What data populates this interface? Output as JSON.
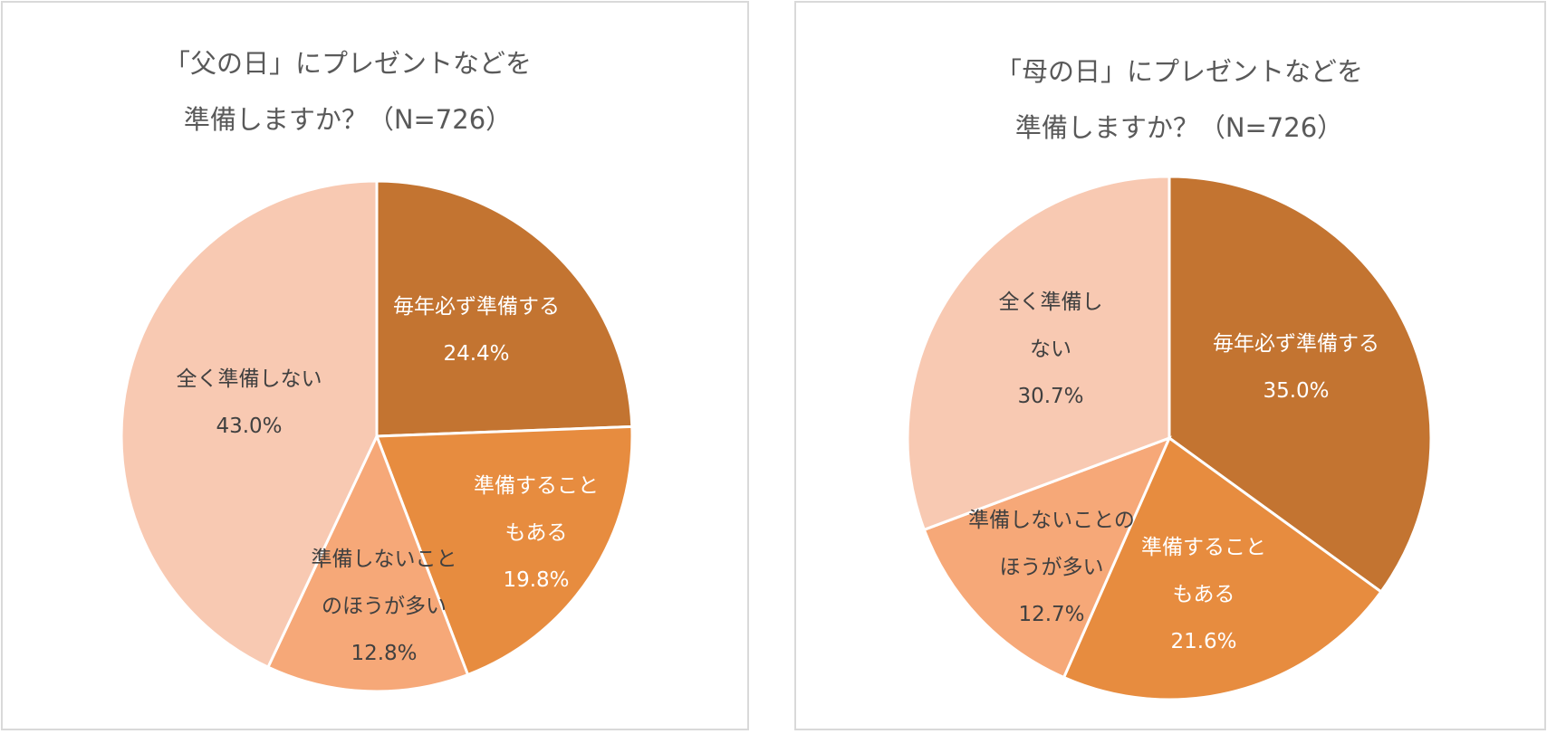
{
  "charts": [
    {
      "title_lines": [
        "「父の日」にプレゼントなどを",
        "準備しますか？（N=726）"
      ],
      "chart_data": {
        "type": "pie",
        "title": "「父の日」にプレゼントなどを準備しますか？（N=726）",
        "slices": [
          {
            "label_lines": [
              "毎年必ず準備する"
            ],
            "value": 24.4,
            "value_label": "24.4%",
            "color": "#c37431",
            "text_color": "#ffffff"
          },
          {
            "label_lines": [
              "準備することもある"
            ],
            "value": 19.8,
            "value_label": "19.8%",
            "color": "#e78c3f",
            "text_color": "#ffffff"
          },
          {
            "label_lines": [
              "準備しないことのほうが多い"
            ],
            "value": 12.8,
            "value_label": "12.8%",
            "color": "#f6a878",
            "text_color": "#404040"
          },
          {
            "label_lines": [
              "全く準備しない"
            ],
            "value": 43.0,
            "value_label": "43.0%",
            "color": "#f8c9b2",
            "text_color": "#404040"
          }
        ]
      }
    },
    {
      "title_lines": [
        "「母の日」にプレゼントなどを",
        "準備しますか？（N=726）"
      ],
      "chart_data": {
        "type": "pie",
        "title": "「母の日」にプレゼントなどを準備しますか？（N=726）",
        "slices": [
          {
            "label_lines": [
              "毎年必ず準備する"
            ],
            "value": 35.0,
            "value_label": "35.0%",
            "color": "#c37431",
            "text_color": "#ffffff"
          },
          {
            "label_lines": [
              "準備することもある"
            ],
            "value": 21.6,
            "value_label": "21.6%",
            "color": "#e78c3f",
            "text_color": "#ffffff"
          },
          {
            "label_lines": [
              "準備しないことのほうが多い"
            ],
            "value": 12.7,
            "value_label": "12.7%",
            "color": "#f6a878",
            "text_color": "#404040"
          },
          {
            "label_lines": [
              "全く準備しない"
            ],
            "value": 30.7,
            "value_label": "30.7%",
            "color": "#f8c9b2",
            "text_color": "#404040"
          }
        ]
      }
    }
  ]
}
